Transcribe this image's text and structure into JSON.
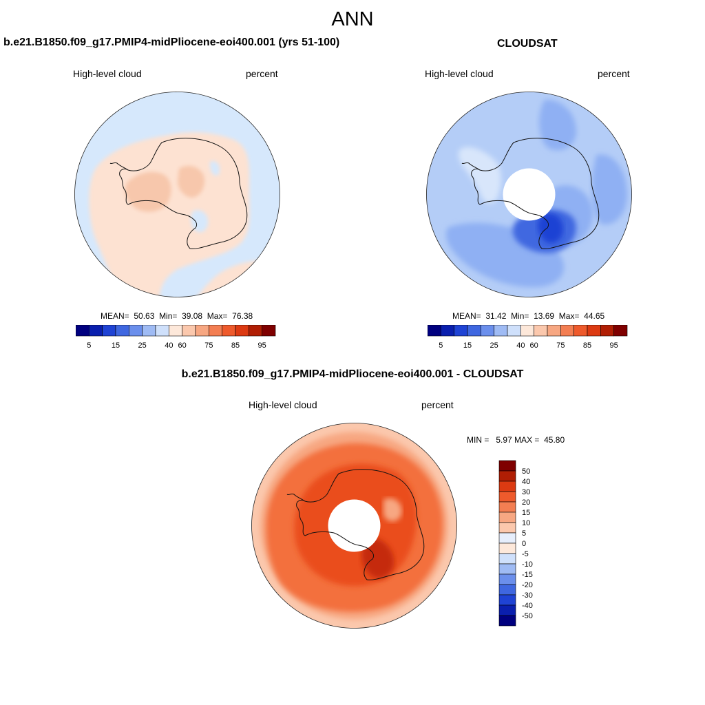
{
  "figure": {
    "title": "ANN"
  },
  "colors": {
    "model": {
      "ocean": "#d6e8fc",
      "land": "#fde2d2",
      "interior": "#f7c7ac"
    },
    "obs": {
      "base": "#b4cdf7",
      "mid": "#8fb0f3",
      "dark": "#3f67e0",
      "darker": "#1f43d4",
      "pale": "#d8e6fb"
    },
    "diff": {
      "base": "#f3703c",
      "dark": "#ea4e1c",
      "darker": "#c52c0a",
      "pale": "#f7a782",
      "paler": "#fbc8ad"
    },
    "scale": [
      "#00007f",
      "#0a1fae",
      "#1f43d4",
      "#3f67e0",
      "#6b8fec",
      "#9fbbf4",
      "#cfe0fb",
      "#fde8da",
      "#fbc8ad",
      "#f7a782",
      "#f37e52",
      "#ee5a2c",
      "#dc3a12",
      "#b01e04",
      "#7f0000"
    ]
  },
  "panels": [
    {
      "title": "b.e21.B1850.f09_g17.PMIP4-midPliocene-eoi400.001 (yrs 51-100)",
      "variable": "High-level cloud",
      "units": "percent",
      "stats": {
        "mean_label": "MEAN=",
        "mean": "50.63",
        "min_label": "Min=",
        "min": "39.08",
        "max_label": "Max=",
        "max": "76.38"
      },
      "colorbar_ticks": [
        "5",
        "15",
        "25",
        "40",
        "60",
        "75",
        "85",
        "95"
      ]
    },
    {
      "title": "CLOUDSAT",
      "variable": "High-level cloud",
      "units": "percent",
      "stats": {
        "mean_label": "MEAN=",
        "mean": "31.42",
        "min_label": "Min=",
        "min": "13.69",
        "max_label": "Max=",
        "max": "44.65"
      },
      "colorbar_ticks": [
        "5",
        "15",
        "25",
        "40",
        "60",
        "75",
        "85",
        "95"
      ]
    },
    {
      "title": "b.e21.B1850.f09_g17.PMIP4-midPliocene-eoi400.001 - CLOUDSAT",
      "variable": "High-level cloud",
      "units": "percent",
      "stats": {
        "min_label": "MIN =",
        "min": "5.97",
        "max_label": "MAX =",
        "max": "45.80"
      },
      "colorbar_ticks": [
        "50",
        "40",
        "30",
        "20",
        "15",
        "10",
        "5",
        "0",
        "-5",
        "-10",
        "-15",
        "-20",
        "-30",
        "-40",
        "-50"
      ]
    }
  ]
}
